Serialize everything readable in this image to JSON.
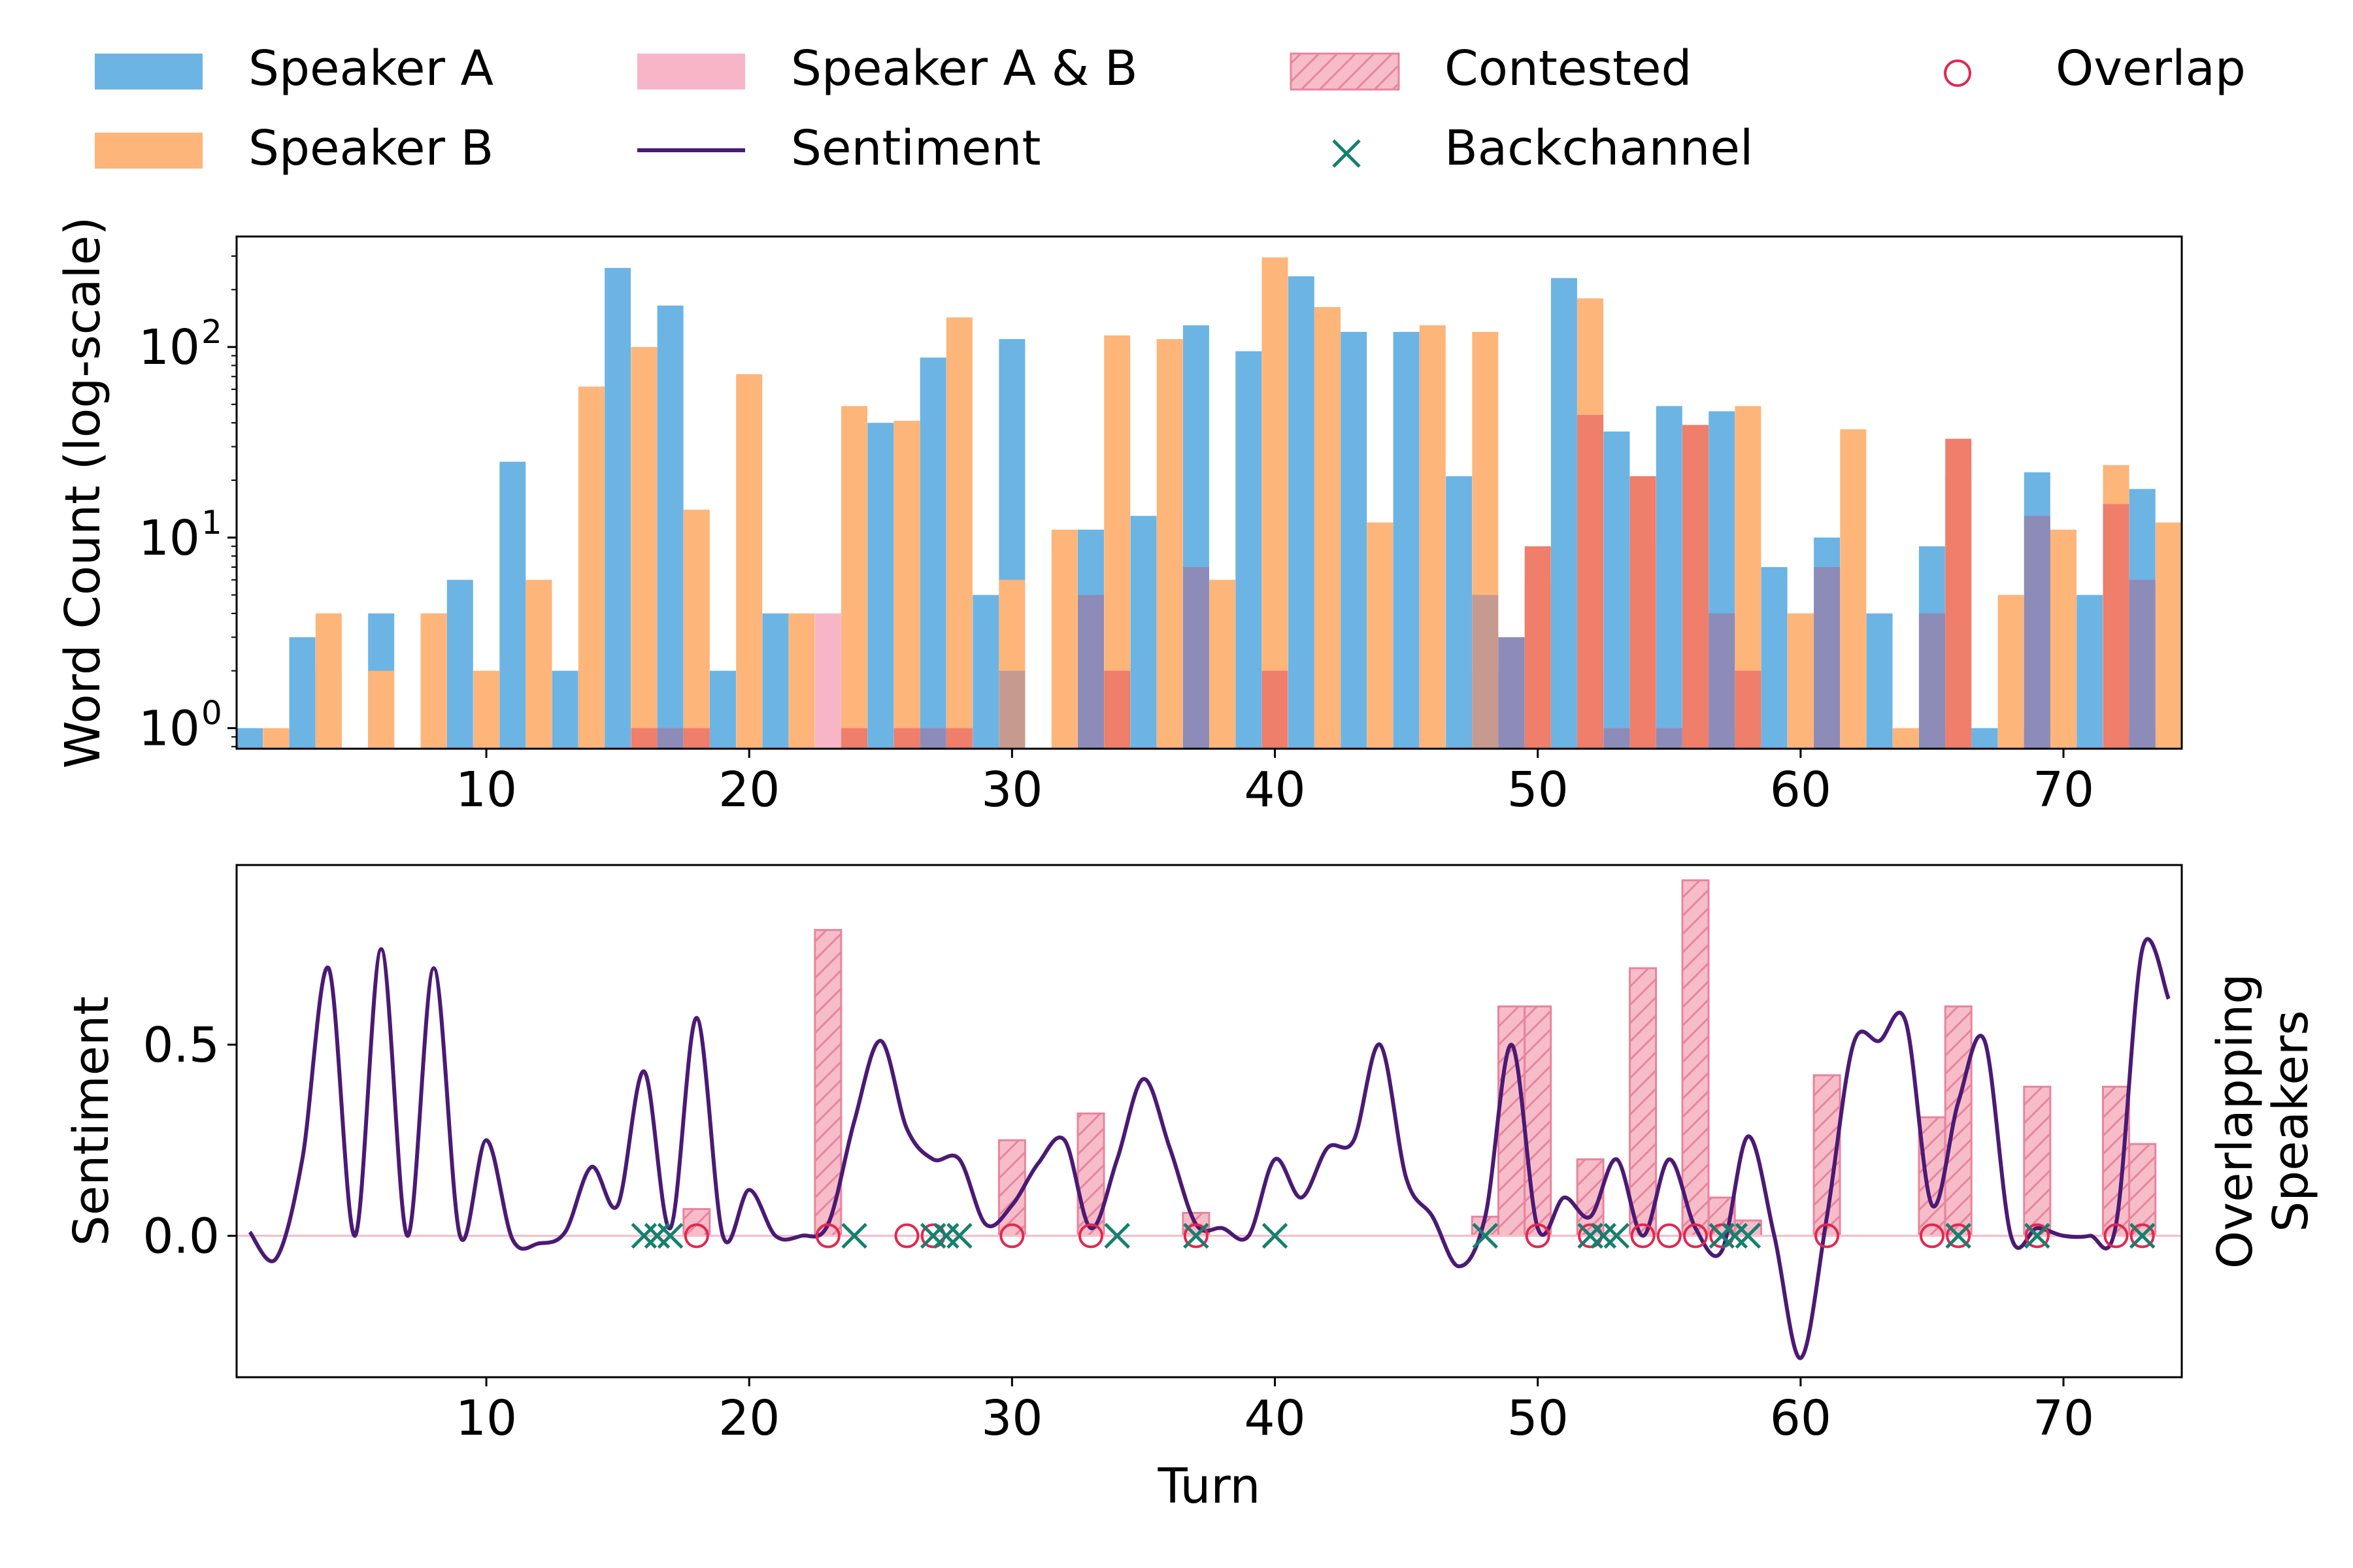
{
  "colors": {
    "speaker_a": "#6cb4e4",
    "speaker_b": "#fdb57a",
    "speaker_ab": "#f7b6c8",
    "overlap_a": "#8d8bb8",
    "overlap_b": "#ef7e6a",
    "overlap_ab": "#c69a8f",
    "sentiment": "#4b1a74",
    "contested_fill": "#f6bdc9",
    "contested_edge": "#e8849e",
    "overlap_marker": "#e0284f",
    "backchannel_marker": "#15806f"
  },
  "legend": {
    "speaker_a": "Speaker A",
    "speaker_b": "Speaker B",
    "speaker_ab": "Speaker A & B",
    "sentiment": "Sentiment",
    "contested": "Contested",
    "backchannel": "Backchannel",
    "overlap": "Overlap"
  },
  "chart_data": [
    {
      "type": "bar",
      "ylabel": "Word Count (log-scale)",
      "yscale": "log",
      "ylim": [
        0.78,
        380
      ],
      "xlim": [
        0.5,
        74.5
      ],
      "xticks": [
        "10",
        "20",
        "30",
        "40",
        "50",
        "60",
        "70"
      ],
      "yticks": [
        "10",
        "10",
        "10"
      ],
      "ytick_exponents": [
        "0",
        "1",
        "2"
      ],
      "series": [
        {
          "name": "Speaker A",
          "bars": [
            [
              1,
              1
            ],
            [
              3,
              3
            ],
            [
              4,
              2
            ],
            [
              6,
              4
            ],
            [
              8,
              4
            ],
            [
              9,
              6
            ],
            [
              11,
              25
            ],
            [
              13,
              2
            ],
            [
              15,
              260
            ],
            [
              17,
              165
            ],
            [
              19,
              2
            ],
            [
              21,
              4
            ],
            [
              25,
              40
            ],
            [
              27,
              88
            ],
            [
              29,
              5
            ],
            [
              30,
              110
            ],
            [
              33,
              11
            ],
            [
              35,
              13
            ],
            [
              37,
              130
            ],
            [
              39,
              95
            ],
            [
              41,
              235
            ],
            [
              43,
              120
            ],
            [
              45,
              120
            ],
            [
              47,
              21
            ],
            [
              48,
              2
            ],
            [
              49,
              2
            ],
            [
              51,
              230
            ],
            [
              53,
              36
            ],
            [
              55,
              49
            ],
            [
              57,
              46
            ],
            [
              59,
              7
            ],
            [
              61,
              10
            ],
            [
              63,
              4
            ],
            [
              65,
              9
            ],
            [
              67,
              1
            ],
            [
              69,
              22
            ],
            [
              71,
              5
            ],
            [
              73,
              18
            ]
          ]
        },
        {
          "name": "Speaker B",
          "bars": [
            [
              2,
              1
            ],
            [
              4,
              4
            ],
            [
              6,
              2
            ],
            [
              8,
              4
            ],
            [
              10,
              2
            ],
            [
              12,
              6
            ],
            [
              14,
              62
            ],
            [
              16,
              100
            ],
            [
              18,
              14
            ],
            [
              20,
              72
            ],
            [
              22,
              4
            ],
            [
              24,
              49
            ],
            [
              26,
              41
            ],
            [
              28,
              143
            ],
            [
              30,
              6
            ],
            [
              32,
              11
            ],
            [
              34,
              115
            ],
            [
              36,
              110
            ],
            [
              38,
              6
            ],
            [
              40,
              295
            ],
            [
              42,
              162
            ],
            [
              44,
              12
            ],
            [
              46,
              130
            ],
            [
              48,
              120
            ],
            [
              50,
              6
            ],
            [
              52,
              180
            ],
            [
              54,
              9
            ],
            [
              56,
              3
            ],
            [
              58,
              49
            ],
            [
              60,
              4
            ],
            [
              62,
              37
            ],
            [
              64,
              1
            ],
            [
              66,
              21
            ],
            [
              68,
              5
            ],
            [
              70,
              11
            ],
            [
              72,
              24
            ],
            [
              74,
              12
            ]
          ]
        },
        {
          "name": "Speaker A & B",
          "bars": [
            [
              16,
              1
            ],
            [
              17,
              1
            ],
            [
              18,
              1
            ],
            [
              23,
              4
            ],
            [
              23,
              1
            ],
            [
              24,
              1
            ],
            [
              26,
              1
            ],
            [
              27,
              1
            ],
            [
              28,
              1
            ],
            [
              30,
              2
            ],
            [
              33,
              5
            ],
            [
              34,
              2
            ],
            [
              37,
              7
            ],
            [
              37,
              1
            ],
            [
              40,
              2
            ],
            [
              48,
              5
            ],
            [
              48,
              2
            ],
            [
              49,
              3
            ],
            [
              49,
              2
            ],
            [
              50,
              9
            ],
            [
              52,
              44
            ],
            [
              52,
              2
            ],
            [
              53,
              1
            ],
            [
              54,
              21
            ],
            [
              55,
              1
            ],
            [
              56,
              39
            ],
            [
              57,
              4
            ],
            [
              57,
              1
            ],
            [
              58,
              2
            ],
            [
              58,
              1
            ],
            [
              61,
              7
            ],
            [
              65,
              4
            ],
            [
              66,
              33
            ],
            [
              66,
              1
            ],
            [
              69,
              13
            ],
            [
              69,
              1
            ],
            [
              72,
              15
            ],
            [
              73,
              6
            ],
            [
              73,
              1
            ]
          ]
        }
      ]
    },
    {
      "type": "line",
      "xlabel": "Turn",
      "ylabel": "Sentiment",
      "ylabel_right": [
        "Overlapping",
        "Speakers"
      ],
      "xlim": [
        0.5,
        74.5
      ],
      "ylim": [
        -0.37,
        0.97
      ],
      "xticks": [
        "10",
        "20",
        "30",
        "40",
        "50",
        "60",
        "70"
      ],
      "yticks": [
        "0.0",
        "0.5"
      ],
      "series": [
        {
          "name": "Sentiment",
          "x": [
            1,
            2,
            3,
            4,
            5,
            6,
            7,
            8,
            9,
            10,
            11,
            12,
            13,
            14,
            15,
            16,
            17,
            18,
            19,
            20,
            21,
            22,
            23,
            24,
            25,
            26,
            27,
            28,
            29,
            30,
            31,
            32,
            33,
            34,
            35,
            36,
            37,
            38,
            39,
            40,
            41,
            42,
            43,
            44,
            45,
            46,
            47,
            48,
            49,
            50,
            51,
            52,
            53,
            54,
            55,
            56,
            57,
            58,
            59,
            60,
            61,
            62,
            63,
            64,
            65,
            66,
            67,
            68,
            69,
            70,
            71,
            72,
            73,
            74
          ],
          "y": [
            0.01,
            -0.06,
            0.2,
            0.7,
            0.0,
            0.75,
            0.0,
            0.7,
            0.0,
            0.25,
            -0.01,
            -0.02,
            0.01,
            0.18,
            0.08,
            0.43,
            0.02,
            0.57,
            0.0,
            0.12,
            0.0,
            0.0,
            0.03,
            0.3,
            0.51,
            0.28,
            0.2,
            0.2,
            0.03,
            0.08,
            0.19,
            0.25,
            0.02,
            0.2,
            0.41,
            0.23,
            0.03,
            0.02,
            0.0,
            0.2,
            0.1,
            0.23,
            0.25,
            0.5,
            0.15,
            0.05,
            -0.08,
            0.05,
            0.5,
            0.02,
            0.1,
            0.05,
            0.2,
            0.0,
            0.2,
            0.02,
            -0.04,
            0.26,
            0.0,
            -0.32,
            0.05,
            0.5,
            0.51,
            0.56,
            0.08,
            0.35,
            0.51,
            0.0,
            0.02,
            0.0,
            0.0,
            0.03,
            0.75,
            0.62
          ]
        },
        {
          "name": "Contested",
          "bars": [
            [
              18,
              0.07
            ],
            [
              23,
              0.8
            ],
            [
              30,
              0.25
            ],
            [
              33,
              0.32
            ],
            [
              37,
              0.06
            ],
            [
              48,
              0.05
            ],
            [
              49,
              0.6
            ],
            [
              50,
              0.6
            ],
            [
              52,
              0.2
            ],
            [
              54,
              0.7
            ],
            [
              56,
              0.93
            ],
            [
              57,
              0.1
            ],
            [
              58,
              0.04
            ],
            [
              61,
              0.42
            ],
            [
              65,
              0.31
            ],
            [
              66,
              0.6
            ],
            [
              69,
              0.39
            ],
            [
              72,
              0.39
            ],
            [
              73,
              0.24
            ]
          ]
        },
        {
          "name": "Overlap",
          "x": [
            18,
            23,
            26,
            27,
            30,
            33,
            37,
            50,
            52,
            54,
            55,
            56,
            57,
            61,
            65,
            66,
            69,
            72,
            73
          ]
        },
        {
          "name": "Backchannel",
          "x": [
            16,
            16.5,
            17,
            24,
            27,
            27.5,
            28,
            34,
            37,
            40,
            48,
            52,
            52.5,
            53,
            57,
            57.5,
            58,
            66,
            69,
            73
          ]
        }
      ]
    }
  ]
}
